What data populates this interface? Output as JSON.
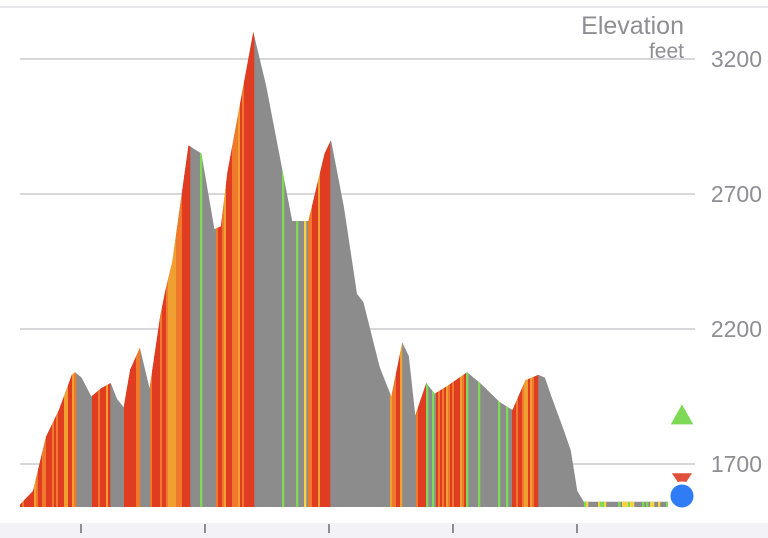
{
  "chart_data": {
    "type": "area",
    "title": "Elevation",
    "subtitle": "feet",
    "xlabel": "",
    "ylabel": "",
    "ylim": [
      1540,
      3330
    ],
    "yticks": [
      1700,
      2200,
      2700,
      3200
    ],
    "ytick_labels": [
      "1700",
      "2200",
      "2700",
      "3200"
    ],
    "grid": true,
    "fill_color_default": "#8c8c8c",
    "grade_colors": {
      "flat": "#7ed957",
      "gentle": "#f5d443",
      "moderate": "#f0a030",
      "steep": "#ef7a2c",
      "very_steep": "#e03c22"
    },
    "x": [
      0,
      0.02,
      0.04,
      0.06,
      0.08,
      0.085,
      0.095,
      0.11,
      0.125,
      0.14,
      0.15,
      0.16,
      0.17,
      0.185,
      0.2,
      0.2165,
      0.225,
      0.235,
      0.26,
      0.28,
      0.3,
      0.31,
      0.32,
      0.34,
      0.36,
      0.38,
      0.4,
      0.42,
      0.445,
      0.47,
      0.48,
      0.5,
      0.52,
      0.53,
      0.555,
      0.573,
      0.59,
      0.6,
      0.61,
      0.627,
      0.64,
      0.66,
      0.69,
      0.71,
      0.74,
      0.76,
      0.78,
      0.8,
      0.81,
      0.82,
      0.84,
      0.85,
      0.86,
      0.87,
      0.88,
      0.89,
      0.9,
      0.91,
      0.925,
      0.94,
      0.96,
      0.975,
      0.99,
      1.0
    ],
    "elevation": [
      1550,
      1600,
      1800,
      1900,
      2030,
      2040,
      2020,
      1950,
      1980,
      2000,
      1940,
      1910,
      2050,
      2130,
      1980,
      2250,
      2350,
      2450,
      2880,
      2850,
      2570,
      2580,
      2780,
      3040,
      3300,
      3100,
      2850,
      2600,
      2600,
      2850,
      2900,
      2650,
      2330,
      2300,
      2060,
      1950,
      2150,
      2100,
      1880,
      2000,
      1960,
      1990,
      2040,
      2000,
      1930,
      1900,
      2010,
      2030,
      2020,
      1950,
      1820,
      1750,
      1600,
      1560,
      1560,
      1560,
      1560,
      1560,
      1560,
      1560,
      1560,
      1560,
      1560,
      1560
    ],
    "markers": [
      {
        "name": "up-marker",
        "color": "#7ed957",
        "elevation": 1880
      },
      {
        "name": "down-marker",
        "color": "#e0503a",
        "elevation": 1640
      },
      {
        "name": "position-marker",
        "color": "#2f7cf6",
        "elevation": 1560
      }
    ],
    "x_ticks_count": 5
  }
}
